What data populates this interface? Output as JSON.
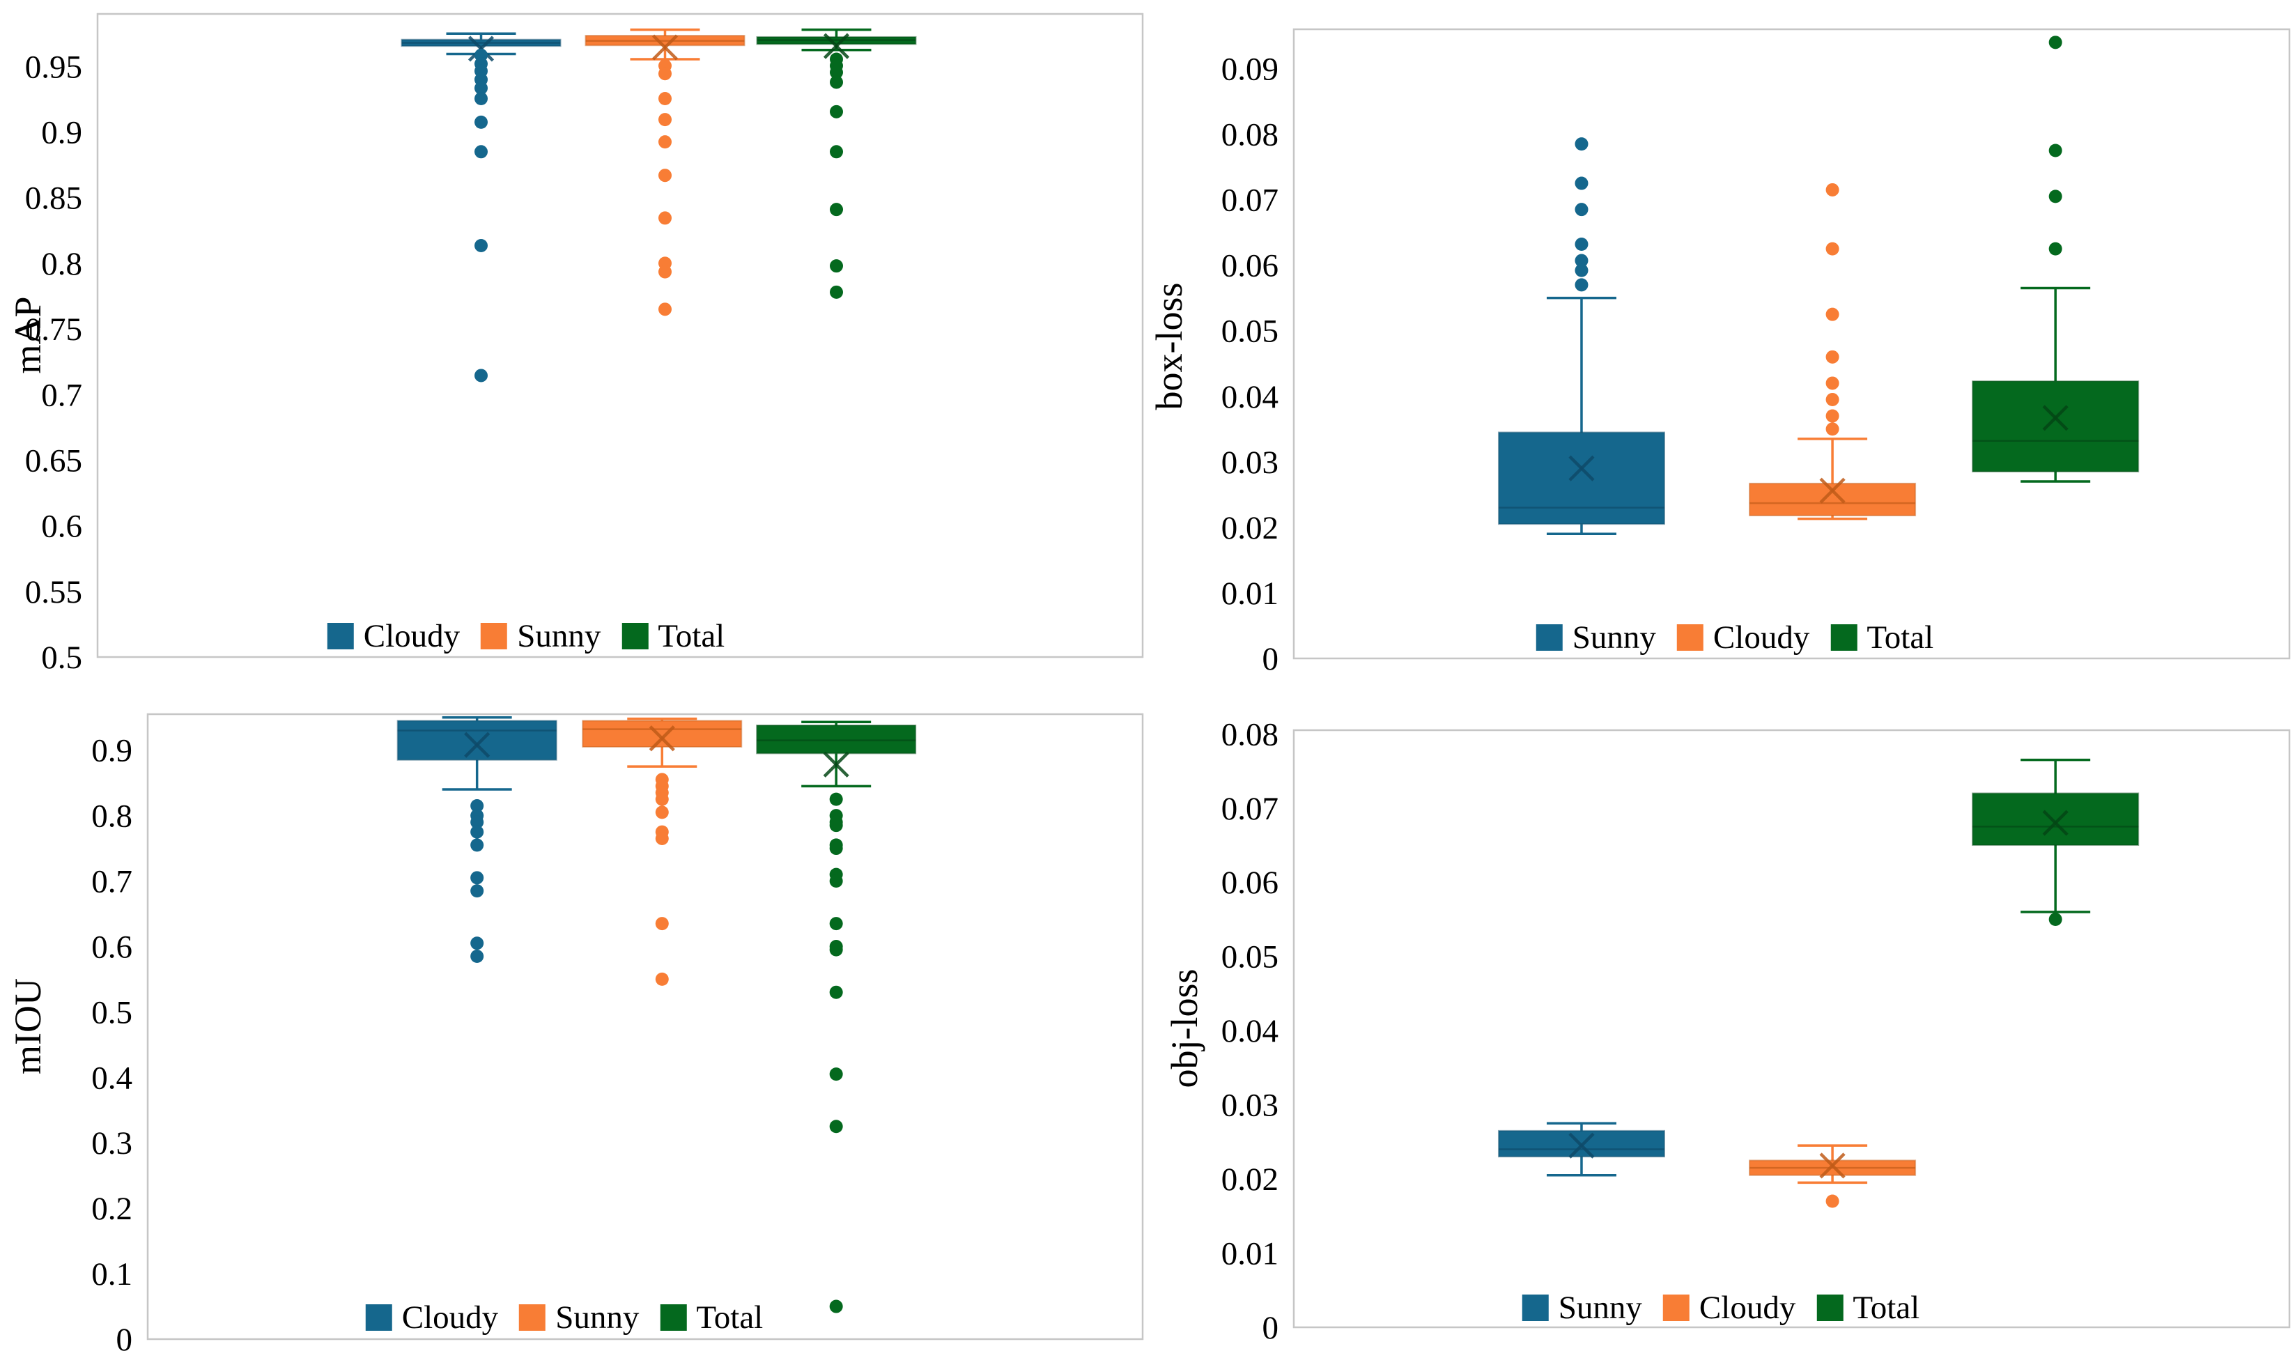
{
  "page": {
    "background": "#FFFFFF"
  },
  "colors": {
    "blue": "#15678D",
    "blue_dark": "#0E4A69",
    "orange": "#F87D35",
    "orange_dark": "#C05A17",
    "green": "#04691E",
    "green_dark": "#034715",
    "border": "#C6C6C6",
    "text": "#000000"
  },
  "chart_data": [
    {
      "type": "box",
      "ylabel": "mAP",
      "ylim": [
        0.5,
        0.99
      ],
      "grid": false,
      "legend_position": "bottom-center",
      "ytick_values": [
        0.5,
        0.55,
        0.6,
        0.65,
        0.7,
        0.75,
        0.8,
        0.85,
        0.9,
        0.95
      ],
      "ytick_labels": [
        "0.5",
        "0.55",
        "0.6",
        "0.65",
        "0.7",
        "0.75",
        "0.8",
        "0.85",
        "0.9",
        "0.95"
      ],
      "series": [
        {
          "name": "Cloudy",
          "color": "blue",
          "whisker_low": 0.9595,
          "q1": 0.9655,
          "median": 0.968,
          "q3": 0.9705,
          "whisker_high": 0.975,
          "mean": 0.9635,
          "outliers": [
            0.9585,
            0.952,
            0.9465,
            0.94,
            0.9335,
            0.9255,
            0.9075,
            0.885,
            0.8135,
            0.7145
          ]
        },
        {
          "name": "Sunny",
          "color": "orange",
          "whisker_low": 0.9555,
          "q1": 0.966,
          "median": 0.9695,
          "q3": 0.9735,
          "whisker_high": 0.978,
          "mean": 0.9645,
          "outliers": [
            0.9505,
            0.9445,
            0.9255,
            0.9095,
            0.8925,
            0.867,
            0.8345,
            0.8,
            0.7935,
            0.765
          ]
        },
        {
          "name": "Total",
          "color": "green",
          "whisker_low": 0.9625,
          "q1": 0.967,
          "median": 0.97,
          "q3": 0.9725,
          "whisker_high": 0.978,
          "mean": 0.9655,
          "outliers": [
            0.9555,
            0.9505,
            0.9455,
            0.938,
            0.9155,
            0.885,
            0.841,
            0.798,
            0.778
          ]
        }
      ]
    },
    {
      "type": "box",
      "ylabel": "box-loss",
      "ylim": [
        0,
        0.096
      ],
      "grid": false,
      "legend_position": "bottom-center",
      "ytick_values": [
        0,
        0.01,
        0.02,
        0.03,
        0.04,
        0.05,
        0.06,
        0.07,
        0.08,
        0.09
      ],
      "ytick_labels": [
        "0",
        "0.01",
        "0.02",
        "0.03",
        "0.04",
        "0.05",
        "0.06",
        "0.07",
        "0.08",
        "0.09"
      ],
      "series": [
        {
          "name": "Sunny",
          "color": "blue",
          "whisker_low": 0.019,
          "q1": 0.0205,
          "median": 0.023,
          "q3": 0.0345,
          "whisker_high": 0.055,
          "mean": 0.029,
          "outliers": [
            0.0785,
            0.0725,
            0.0685,
            0.0632,
            0.0607,
            0.0592,
            0.057
          ]
        },
        {
          "name": "Cloudy",
          "color": "orange",
          "whisker_low": 0.0213,
          "q1": 0.0218,
          "median": 0.0237,
          "q3": 0.0267,
          "whisker_high": 0.0335,
          "mean": 0.0256,
          "outliers": [
            0.0715,
            0.0625,
            0.0525,
            0.046,
            0.042,
            0.0395,
            0.037,
            0.035
          ]
        },
        {
          "name": "Total",
          "color": "green",
          "whisker_low": 0.027,
          "q1": 0.0285,
          "median": 0.0332,
          "q3": 0.0423,
          "whisker_high": 0.0565,
          "mean": 0.0367,
          "outliers": [
            0.094,
            0.0775,
            0.0705,
            0.0625
          ]
        }
      ]
    },
    {
      "type": "box",
      "ylabel": "mIOU",
      "ylim": [
        0,
        0.955
      ],
      "grid": false,
      "legend_position": "bottom-center",
      "ytick_values": [
        0,
        0.1,
        0.2,
        0.3,
        0.4,
        0.5,
        0.6,
        0.7,
        0.8,
        0.9
      ],
      "ytick_labels": [
        "0",
        "0.1",
        "0.2",
        "0.3",
        "0.4",
        "0.5",
        "0.6",
        "0.7",
        "0.8",
        "0.9"
      ],
      "series": [
        {
          "name": "Cloudy",
          "color": "blue",
          "whisker_low": 0.84,
          "q1": 0.885,
          "median": 0.93,
          "q3": 0.945,
          "whisker_high": 0.95,
          "mean": 0.908,
          "outliers": [
            0.815,
            0.8,
            0.79,
            0.775,
            0.755,
            0.705,
            0.685,
            0.605,
            0.585
          ]
        },
        {
          "name": "Sunny",
          "color": "orange",
          "whisker_low": 0.875,
          "q1": 0.905,
          "median": 0.932,
          "q3": 0.945,
          "whisker_high": 0.948,
          "mean": 0.918,
          "outliers": [
            0.855,
            0.845,
            0.835,
            0.825,
            0.805,
            0.775,
            0.765,
            0.635,
            0.55
          ]
        },
        {
          "name": "Total",
          "color": "green",
          "whisker_low": 0.845,
          "q1": 0.895,
          "median": 0.915,
          "q3": 0.938,
          "whisker_high": 0.943,
          "mean": 0.878,
          "outliers": [
            0.825,
            0.8,
            0.79,
            0.785,
            0.755,
            0.75,
            0.71,
            0.7,
            0.635,
            0.6,
            0.595,
            0.53,
            0.405,
            0.325,
            0.05
          ]
        }
      ]
    },
    {
      "type": "box",
      "ylabel": "obj-loss",
      "ylim": [
        0,
        0.0805
      ],
      "grid": false,
      "legend_position": "bottom-center",
      "ytick_values": [
        0,
        0.01,
        0.02,
        0.03,
        0.04,
        0.05,
        0.06,
        0.07,
        0.08
      ],
      "ytick_labels": [
        "0",
        "0.01",
        "0.02",
        "0.03",
        "0.04",
        "0.05",
        "0.06",
        "0.07",
        "0.08"
      ],
      "series": [
        {
          "name": "Sunny",
          "color": "blue",
          "whisker_low": 0.0205,
          "q1": 0.023,
          "median": 0.024,
          "q3": 0.0265,
          "whisker_high": 0.0275,
          "mean": 0.0245,
          "outliers": []
        },
        {
          "name": "Cloudy",
          "color": "orange",
          "whisker_low": 0.0195,
          "q1": 0.0205,
          "median": 0.0215,
          "q3": 0.0225,
          "whisker_high": 0.0245,
          "mean": 0.0218,
          "outliers": [
            0.017
          ]
        },
        {
          "name": "Total",
          "color": "green",
          "whisker_low": 0.056,
          "q1": 0.065,
          "median": 0.0675,
          "q3": 0.072,
          "whisker_high": 0.0765,
          "mean": 0.068,
          "outliers": [
            0.055
          ]
        }
      ]
    }
  ]
}
